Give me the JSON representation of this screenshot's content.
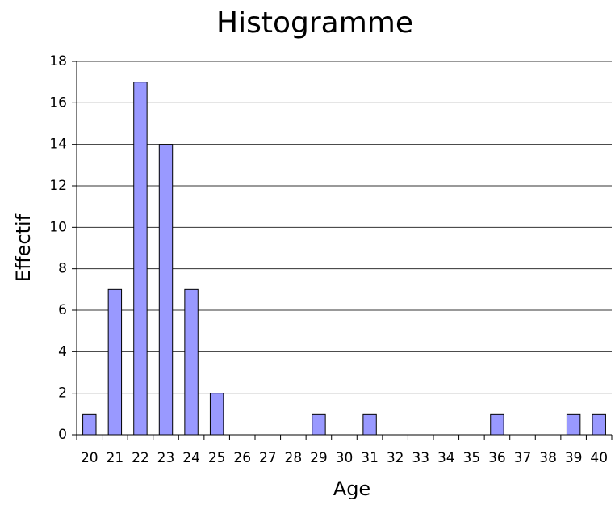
{
  "chart_data": {
    "type": "bar",
    "title": "Histogramme",
    "xlabel": "Age",
    "ylabel": "Effectif",
    "categories": [
      "20",
      "21",
      "22",
      "23",
      "24",
      "25",
      "26",
      "27",
      "28",
      "29",
      "30",
      "31",
      "32",
      "33",
      "34",
      "35",
      "36",
      "37",
      "38",
      "39",
      "40"
    ],
    "values": [
      1,
      7,
      17,
      14,
      7,
      2,
      0,
      0,
      0,
      1,
      0,
      1,
      0,
      0,
      0,
      0,
      1,
      0,
      0,
      1,
      1
    ],
    "color": "#9999ff",
    "ylim": [
      0,
      18
    ],
    "yticks": [
      0,
      2,
      4,
      6,
      8,
      10,
      12,
      14,
      16,
      18
    ],
    "grid": true
  }
}
